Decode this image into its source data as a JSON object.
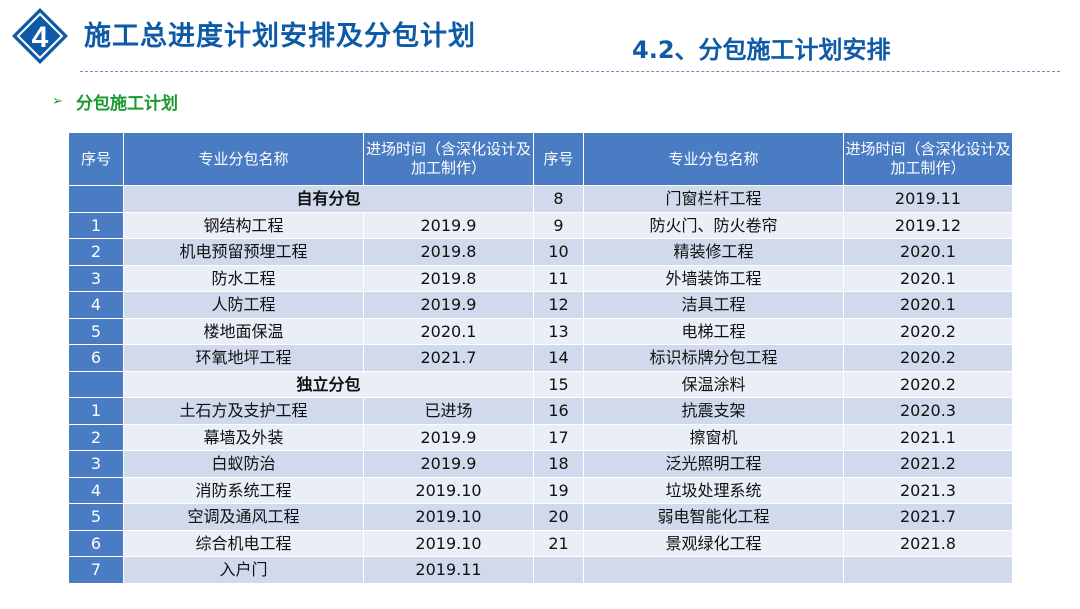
{
  "header": {
    "badge_number": "4",
    "title": "施工总进度计划安排及分包计划",
    "subtitle": "4.2、分包施工计划安排"
  },
  "section": {
    "bullet": "➢",
    "heading": "分包施工计划"
  },
  "colors": {
    "brand_blue": "#0e5aa7",
    "header_cell": "#4a7cc4",
    "row_dark": "#d0daec",
    "row_light": "#e9eef7",
    "heading_green": "#1a9a2e"
  },
  "table": {
    "headers": [
      "序号",
      "专业分包名称",
      "进场时间（含深化设计及加工制作）",
      "序号",
      "专业分包名称",
      "进场时间（含深化设计及加工制作）"
    ],
    "rows": [
      {
        "l_idx": "",
        "l_name": "自有分包",
        "l_time": "",
        "l_group": true,
        "r_idx": "8",
        "r_name": "门窗栏杆工程",
        "r_time": "2019.11"
      },
      {
        "l_idx": "1",
        "l_name": "钢结构工程",
        "l_time": "2019.9",
        "r_idx": "9",
        "r_name": "防火门、防火卷帘",
        "r_time": "2019.12"
      },
      {
        "l_idx": "2",
        "l_name": "机电预留预埋工程",
        "l_time": "2019.8",
        "r_idx": "10",
        "r_name": "精装修工程",
        "r_time": "2020.1"
      },
      {
        "l_idx": "3",
        "l_name": "防水工程",
        "l_time": "2019.8",
        "r_idx": "11",
        "r_name": "外墙装饰工程",
        "r_time": "2020.1"
      },
      {
        "l_idx": "4",
        "l_name": "人防工程",
        "l_time": "2019.9",
        "r_idx": "12",
        "r_name": "洁具工程",
        "r_time": "2020.1"
      },
      {
        "l_idx": "5",
        "l_name": "楼地面保温",
        "l_time": "2020.1",
        "r_idx": "13",
        "r_name": "电梯工程",
        "r_time": "2020.2"
      },
      {
        "l_idx": "6",
        "l_name": "环氧地坪工程",
        "l_time": "2021.7",
        "r_idx": "14",
        "r_name": "标识标牌分包工程",
        "r_time": "2020.2"
      },
      {
        "l_idx": "",
        "l_name": "独立分包",
        "l_time": "",
        "l_group": true,
        "r_idx": "15",
        "r_name": "保温涂料",
        "r_time": "2020.2"
      },
      {
        "l_idx": "1",
        "l_name": "土石方及支护工程",
        "l_time": "已进场",
        "r_idx": "16",
        "r_name": "抗震支架",
        "r_time": "2020.3"
      },
      {
        "l_idx": "2",
        "l_name": "幕墙及外装",
        "l_time": "2019.9",
        "r_idx": "17",
        "r_name": "擦窗机",
        "r_time": "2021.1"
      },
      {
        "l_idx": "3",
        "l_name": "白蚁防治",
        "l_time": "2019.9",
        "r_idx": "18",
        "r_name": "泛光照明工程",
        "r_time": "2021.2"
      },
      {
        "l_idx": "4",
        "l_name": "消防系统工程",
        "l_time": "2019.10",
        "r_idx": "19",
        "r_name": "垃圾处理系统",
        "r_time": "2021.3"
      },
      {
        "l_idx": "5",
        "l_name": "空调及通风工程",
        "l_time": "2019.10",
        "r_idx": "20",
        "r_name": "弱电智能化工程",
        "r_time": "2021.7"
      },
      {
        "l_idx": "6",
        "l_name": "综合机电工程",
        "l_time": "2019.10",
        "r_idx": "21",
        "r_name": "景观绿化工程",
        "r_time": "2021.8"
      },
      {
        "l_idx": "7",
        "l_name": "入户门",
        "l_time": "2019.11",
        "r_idx": "",
        "r_name": "",
        "r_time": ""
      }
    ]
  }
}
